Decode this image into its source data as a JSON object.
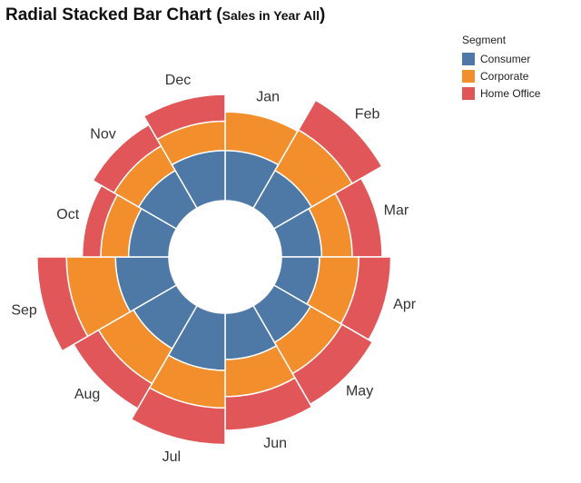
{
  "title": {
    "main": "Radial Stacked Bar Chart (",
    "sub": "Sales in Year All",
    "close": ")"
  },
  "legend": {
    "title": "Segment",
    "items": [
      {
        "label": "Consumer",
        "color": "#4e79a7"
      },
      {
        "label": "Corporate",
        "color": "#f28e2b"
      },
      {
        "label": "Home Office",
        "color": "#e15759"
      }
    ]
  },
  "chart_data": {
    "type": "radial stacked bar",
    "categories": [
      "Jan",
      "Feb",
      "Mar",
      "Apr",
      "May",
      "Jun",
      "Jul",
      "Aug",
      "Sep",
      "Oct",
      "Nov",
      "Dec"
    ],
    "series": [
      {
        "name": "Consumer",
        "color": "#4e79a7",
        "values": [
          92,
          80,
          74,
          70,
          78,
          85,
          105,
          91,
          98,
          74,
          80,
          92
        ]
      },
      {
        "name": "Corporate",
        "color": "#f28e2b",
        "values": [
          71,
          86,
          56,
          72,
          66,
          68,
          69,
          74,
          90,
          51,
          52,
          54
        ]
      },
      {
        "name": "Home Office",
        "color": "#e15759",
        "values": [
          0,
          63,
          55,
          59,
          65,
          62,
          67,
          53,
          54,
          34,
          45,
          49
        ]
      }
    ]
  }
}
